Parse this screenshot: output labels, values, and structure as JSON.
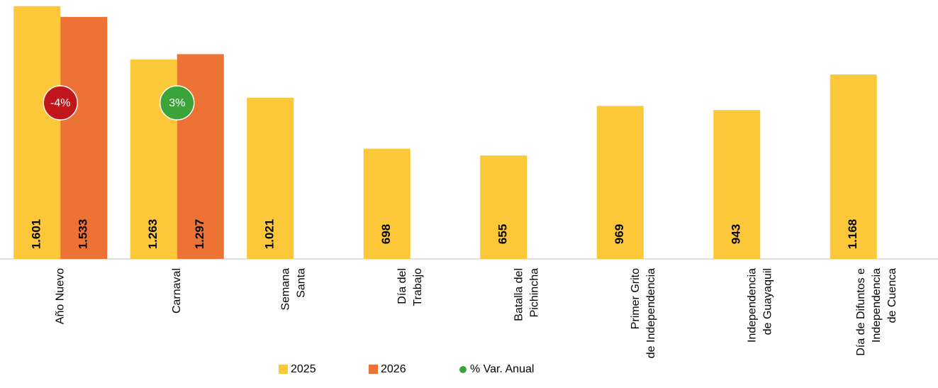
{
  "chart_data": {
    "type": "bar",
    "categories": [
      [
        "Año Nuevo"
      ],
      [
        "Carnaval"
      ],
      [
        "Semana",
        "Santa"
      ],
      [
        "Día del",
        "Trabajo"
      ],
      [
        "Batalla del",
        "Pichincha"
      ],
      [
        "Primer Grito",
        "de Independencia"
      ],
      [
        "Independencia",
        "de Guayaquil"
      ],
      [
        "Día de Difuntos e",
        "Independencia",
        "de Cuenca"
      ]
    ],
    "series": [
      {
        "name": "2025",
        "color": "#fcc83a",
        "values": [
          1601,
          1263,
          1021,
          698,
          655,
          969,
          943,
          1168
        ],
        "value_labels": [
          "1.601",
          "1.263",
          "1.021",
          "698",
          "655",
          "969",
          "943",
          "1.168"
        ]
      },
      {
        "name": "2026",
        "color": "#ec7236",
        "values": [
          1533,
          1297,
          null,
          null,
          null,
          null,
          null,
          null
        ],
        "value_labels": [
          "1.533",
          "1.297",
          null,
          null,
          null,
          null,
          null,
          null
        ]
      }
    ],
    "variation": {
      "name": "% Var. Anual",
      "color": "#3aa33a",
      "negative_color": "#c0161c",
      "values": [
        -4,
        3,
        null,
        null,
        null,
        null,
        null,
        null
      ],
      "value_labels": [
        "-4%",
        "3%",
        null,
        null,
        null,
        null,
        null,
        null
      ]
    },
    "ylim": [
      0,
      1640
    ]
  }
}
